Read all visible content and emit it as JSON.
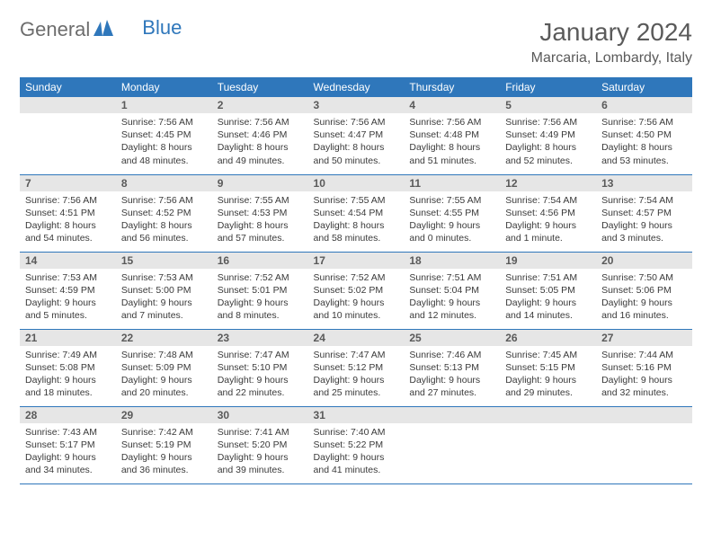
{
  "logo": {
    "general": "General",
    "blue": "Blue"
  },
  "title": "January 2024",
  "location": "Marcaria, Lombardy, Italy",
  "colors": {
    "header_bg": "#2f77bb",
    "header_text": "#ffffff",
    "daynum_bg": "#e6e6e6",
    "daynum_text": "#5a5a5a",
    "body_text": "#3a3a3a",
    "border": "#2f77bb"
  },
  "day_headers": [
    "Sunday",
    "Monday",
    "Tuesday",
    "Wednesday",
    "Thursday",
    "Friday",
    "Saturday"
  ],
  "weeks": [
    [
      {
        "day": "",
        "sunrise": "",
        "sunset": "",
        "daylight": ""
      },
      {
        "day": "1",
        "sunrise": "Sunrise: 7:56 AM",
        "sunset": "Sunset: 4:45 PM",
        "daylight": "Daylight: 8 hours and 48 minutes."
      },
      {
        "day": "2",
        "sunrise": "Sunrise: 7:56 AM",
        "sunset": "Sunset: 4:46 PM",
        "daylight": "Daylight: 8 hours and 49 minutes."
      },
      {
        "day": "3",
        "sunrise": "Sunrise: 7:56 AM",
        "sunset": "Sunset: 4:47 PM",
        "daylight": "Daylight: 8 hours and 50 minutes."
      },
      {
        "day": "4",
        "sunrise": "Sunrise: 7:56 AM",
        "sunset": "Sunset: 4:48 PM",
        "daylight": "Daylight: 8 hours and 51 minutes."
      },
      {
        "day": "5",
        "sunrise": "Sunrise: 7:56 AM",
        "sunset": "Sunset: 4:49 PM",
        "daylight": "Daylight: 8 hours and 52 minutes."
      },
      {
        "day": "6",
        "sunrise": "Sunrise: 7:56 AM",
        "sunset": "Sunset: 4:50 PM",
        "daylight": "Daylight: 8 hours and 53 minutes."
      }
    ],
    [
      {
        "day": "7",
        "sunrise": "Sunrise: 7:56 AM",
        "sunset": "Sunset: 4:51 PM",
        "daylight": "Daylight: 8 hours and 54 minutes."
      },
      {
        "day": "8",
        "sunrise": "Sunrise: 7:56 AM",
        "sunset": "Sunset: 4:52 PM",
        "daylight": "Daylight: 8 hours and 56 minutes."
      },
      {
        "day": "9",
        "sunrise": "Sunrise: 7:55 AM",
        "sunset": "Sunset: 4:53 PM",
        "daylight": "Daylight: 8 hours and 57 minutes."
      },
      {
        "day": "10",
        "sunrise": "Sunrise: 7:55 AM",
        "sunset": "Sunset: 4:54 PM",
        "daylight": "Daylight: 8 hours and 58 minutes."
      },
      {
        "day": "11",
        "sunrise": "Sunrise: 7:55 AM",
        "sunset": "Sunset: 4:55 PM",
        "daylight": "Daylight: 9 hours and 0 minutes."
      },
      {
        "day": "12",
        "sunrise": "Sunrise: 7:54 AM",
        "sunset": "Sunset: 4:56 PM",
        "daylight": "Daylight: 9 hours and 1 minute."
      },
      {
        "day": "13",
        "sunrise": "Sunrise: 7:54 AM",
        "sunset": "Sunset: 4:57 PM",
        "daylight": "Daylight: 9 hours and 3 minutes."
      }
    ],
    [
      {
        "day": "14",
        "sunrise": "Sunrise: 7:53 AM",
        "sunset": "Sunset: 4:59 PM",
        "daylight": "Daylight: 9 hours and 5 minutes."
      },
      {
        "day": "15",
        "sunrise": "Sunrise: 7:53 AM",
        "sunset": "Sunset: 5:00 PM",
        "daylight": "Daylight: 9 hours and 7 minutes."
      },
      {
        "day": "16",
        "sunrise": "Sunrise: 7:52 AM",
        "sunset": "Sunset: 5:01 PM",
        "daylight": "Daylight: 9 hours and 8 minutes."
      },
      {
        "day": "17",
        "sunrise": "Sunrise: 7:52 AM",
        "sunset": "Sunset: 5:02 PM",
        "daylight": "Daylight: 9 hours and 10 minutes."
      },
      {
        "day": "18",
        "sunrise": "Sunrise: 7:51 AM",
        "sunset": "Sunset: 5:04 PM",
        "daylight": "Daylight: 9 hours and 12 minutes."
      },
      {
        "day": "19",
        "sunrise": "Sunrise: 7:51 AM",
        "sunset": "Sunset: 5:05 PM",
        "daylight": "Daylight: 9 hours and 14 minutes."
      },
      {
        "day": "20",
        "sunrise": "Sunrise: 7:50 AM",
        "sunset": "Sunset: 5:06 PM",
        "daylight": "Daylight: 9 hours and 16 minutes."
      }
    ],
    [
      {
        "day": "21",
        "sunrise": "Sunrise: 7:49 AM",
        "sunset": "Sunset: 5:08 PM",
        "daylight": "Daylight: 9 hours and 18 minutes."
      },
      {
        "day": "22",
        "sunrise": "Sunrise: 7:48 AM",
        "sunset": "Sunset: 5:09 PM",
        "daylight": "Daylight: 9 hours and 20 minutes."
      },
      {
        "day": "23",
        "sunrise": "Sunrise: 7:47 AM",
        "sunset": "Sunset: 5:10 PM",
        "daylight": "Daylight: 9 hours and 22 minutes."
      },
      {
        "day": "24",
        "sunrise": "Sunrise: 7:47 AM",
        "sunset": "Sunset: 5:12 PM",
        "daylight": "Daylight: 9 hours and 25 minutes."
      },
      {
        "day": "25",
        "sunrise": "Sunrise: 7:46 AM",
        "sunset": "Sunset: 5:13 PM",
        "daylight": "Daylight: 9 hours and 27 minutes."
      },
      {
        "day": "26",
        "sunrise": "Sunrise: 7:45 AM",
        "sunset": "Sunset: 5:15 PM",
        "daylight": "Daylight: 9 hours and 29 minutes."
      },
      {
        "day": "27",
        "sunrise": "Sunrise: 7:44 AM",
        "sunset": "Sunset: 5:16 PM",
        "daylight": "Daylight: 9 hours and 32 minutes."
      }
    ],
    [
      {
        "day": "28",
        "sunrise": "Sunrise: 7:43 AM",
        "sunset": "Sunset: 5:17 PM",
        "daylight": "Daylight: 9 hours and 34 minutes."
      },
      {
        "day": "29",
        "sunrise": "Sunrise: 7:42 AM",
        "sunset": "Sunset: 5:19 PM",
        "daylight": "Daylight: 9 hours and 36 minutes."
      },
      {
        "day": "30",
        "sunrise": "Sunrise: 7:41 AM",
        "sunset": "Sunset: 5:20 PM",
        "daylight": "Daylight: 9 hours and 39 minutes."
      },
      {
        "day": "31",
        "sunrise": "Sunrise: 7:40 AM",
        "sunset": "Sunset: 5:22 PM",
        "daylight": "Daylight: 9 hours and 41 minutes."
      },
      {
        "day": "",
        "sunrise": "",
        "sunset": "",
        "daylight": ""
      },
      {
        "day": "",
        "sunrise": "",
        "sunset": "",
        "daylight": ""
      },
      {
        "day": "",
        "sunrise": "",
        "sunset": "",
        "daylight": ""
      }
    ]
  ]
}
